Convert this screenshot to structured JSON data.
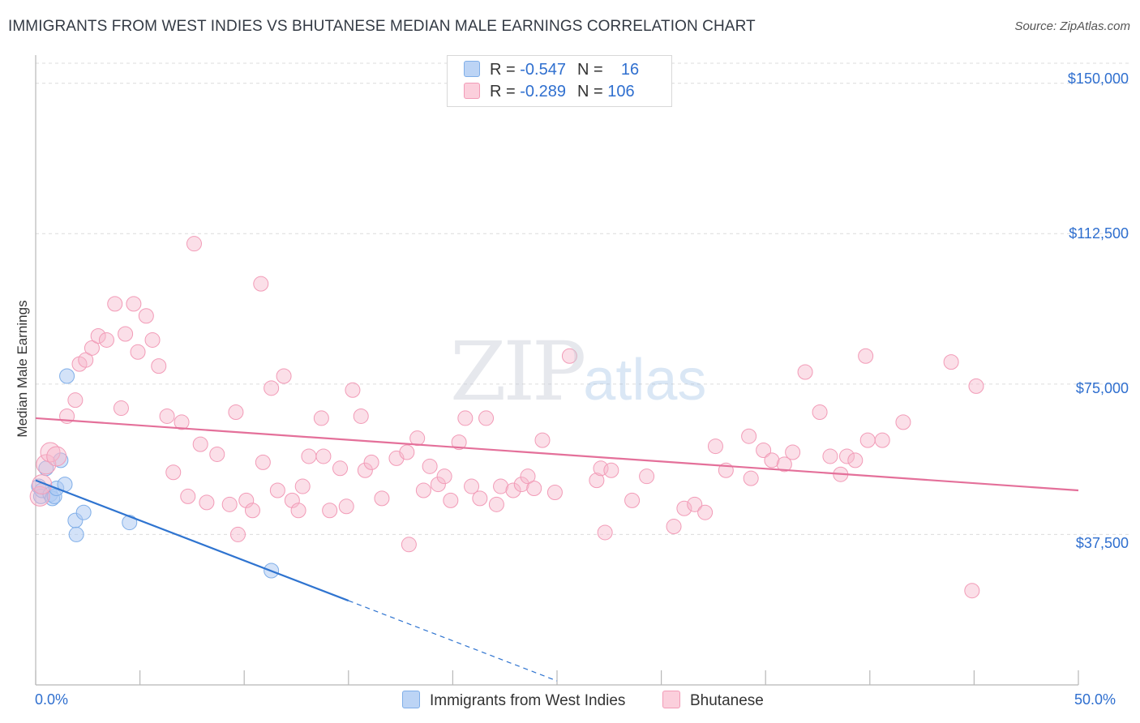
{
  "header": {
    "title": "IMMIGRANTS FROM WEST INDIES VS BHUTANESE MEDIAN MALE EARNINGS CORRELATION CHART",
    "source": "Source: ZipAtlas.com"
  },
  "watermark": {
    "zip": "ZIP",
    "atlas": "atlas"
  },
  "legend": {
    "rows": [
      {
        "r_label": "R =",
        "r_value": "-0.547",
        "n_label": "N =",
        "n_value": "16",
        "color": "#aecbf2"
      },
      {
        "r_label": "R =",
        "r_value": "-0.289",
        "n_label": "N =",
        "n_value": "106",
        "color": "#f7b9cb"
      }
    ]
  },
  "bottom_legend": {
    "items": [
      {
        "label": "Immigrants from West Indies",
        "color": "#aecbf2"
      },
      {
        "label": "Bhutanese",
        "color": "#f7b9cb"
      }
    ]
  },
  "chart_data": {
    "type": "scatter",
    "title": "IMMIGRANTS FROM WEST INDIES VS BHUTANESE MEDIAN MALE EARNINGS CORRELATION CHART",
    "xlabel": "",
    "ylabel": "Median Male Earnings",
    "xlim": [
      0,
      50
    ],
    "ylim": [
      0,
      155000
    ],
    "x_tick_labels": [
      "0.0%",
      "50.0%"
    ],
    "y_ticks": [
      37500,
      75000,
      112500,
      150000
    ],
    "y_tick_labels": [
      "$37,500",
      "$75,000",
      "$112,500",
      "$150,000"
    ],
    "grid": true,
    "series": [
      {
        "name": "Immigrants from West Indies",
        "color": "#7faee8",
        "line_color": "#2f74d0",
        "points": [
          [
            0.15,
            49500
          ],
          [
            0.25,
            47000
          ],
          [
            0.3,
            48500
          ],
          [
            0.5,
            54000
          ],
          [
            0.7,
            47500
          ],
          [
            0.8,
            46500
          ],
          [
            0.9,
            47000
          ],
          [
            1.0,
            49000
          ],
          [
            1.2,
            56000
          ],
          [
            1.4,
            50000
          ],
          [
            1.5,
            77000
          ],
          [
            1.9,
            41000
          ],
          [
            1.95,
            37500
          ],
          [
            2.3,
            43000
          ],
          [
            4.5,
            40500
          ],
          [
            11.3,
            28500
          ]
        ],
        "trend": {
          "x0": 0,
          "y0": 51000,
          "x1": 15,
          "y1": 21000,
          "dash_to_x": 25
        }
      },
      {
        "name": "Bhutanese",
        "color": "#f29bb7",
        "line_color": "#e4709a",
        "points": [
          [
            0.2,
            47000
          ],
          [
            0.3,
            50000
          ],
          [
            0.5,
            55000
          ],
          [
            0.7,
            58000
          ],
          [
            1.0,
            57000
          ],
          [
            1.5,
            67000
          ],
          [
            1.9,
            71000
          ],
          [
            2.1,
            80000
          ],
          [
            2.4,
            81000
          ],
          [
            2.7,
            84000
          ],
          [
            3.0,
            87000
          ],
          [
            3.4,
            86000
          ],
          [
            3.8,
            95000
          ],
          [
            4.1,
            69000
          ],
          [
            4.3,
            87500
          ],
          [
            4.7,
            95000
          ],
          [
            4.9,
            83000
          ],
          [
            5.3,
            92000
          ],
          [
            5.6,
            86000
          ],
          [
            5.9,
            79500
          ],
          [
            6.3,
            67000
          ],
          [
            6.6,
            53000
          ],
          [
            7.0,
            65500
          ],
          [
            7.3,
            47000
          ],
          [
            7.6,
            110000
          ],
          [
            7.9,
            60000
          ],
          [
            8.2,
            45500
          ],
          [
            8.7,
            57500
          ],
          [
            9.3,
            45000
          ],
          [
            9.6,
            68000
          ],
          [
            9.7,
            37500
          ],
          [
            10.1,
            46000
          ],
          [
            10.4,
            43500
          ],
          [
            10.8,
            100000
          ],
          [
            10.9,
            55500
          ],
          [
            11.3,
            74000
          ],
          [
            11.6,
            48500
          ],
          [
            11.9,
            77000
          ],
          [
            12.3,
            46000
          ],
          [
            12.6,
            43500
          ],
          [
            12.8,
            49500
          ],
          [
            13.1,
            57000
          ],
          [
            13.7,
            66500
          ],
          [
            13.8,
            57000
          ],
          [
            14.1,
            43500
          ],
          [
            14.6,
            54000
          ],
          [
            14.9,
            44500
          ],
          [
            15.2,
            73500
          ],
          [
            15.6,
            67000
          ],
          [
            15.8,
            53500
          ],
          [
            16.1,
            55500
          ],
          [
            16.6,
            46500
          ],
          [
            17.3,
            56500
          ],
          [
            17.8,
            58000
          ],
          [
            17.9,
            35000
          ],
          [
            18.3,
            61500
          ],
          [
            18.6,
            48500
          ],
          [
            18.9,
            54500
          ],
          [
            19.3,
            50000
          ],
          [
            19.6,
            52000
          ],
          [
            19.9,
            46000
          ],
          [
            20.3,
            60500
          ],
          [
            20.6,
            66500
          ],
          [
            20.9,
            49500
          ],
          [
            21.3,
            46500
          ],
          [
            21.6,
            66500
          ],
          [
            22.1,
            45000
          ],
          [
            22.3,
            49500
          ],
          [
            22.9,
            48500
          ],
          [
            23.3,
            50000
          ],
          [
            23.6,
            52000
          ],
          [
            23.9,
            49000
          ],
          [
            24.3,
            61000
          ],
          [
            24.9,
            48000
          ],
          [
            25.6,
            82000
          ],
          [
            26.9,
            51000
          ],
          [
            27.1,
            54000
          ],
          [
            27.3,
            38000
          ],
          [
            27.6,
            53500
          ],
          [
            28.6,
            46000
          ],
          [
            29.3,
            52000
          ],
          [
            30.6,
            39500
          ],
          [
            31.1,
            44000
          ],
          [
            31.6,
            45000
          ],
          [
            32.1,
            43000
          ],
          [
            32.6,
            59500
          ],
          [
            33.1,
            53500
          ],
          [
            34.2,
            62000
          ],
          [
            34.3,
            51500
          ],
          [
            34.9,
            58500
          ],
          [
            35.3,
            56000
          ],
          [
            35.9,
            55000
          ],
          [
            36.3,
            58000
          ],
          [
            36.9,
            78000
          ],
          [
            37.6,
            68000
          ],
          [
            38.1,
            57000
          ],
          [
            38.6,
            52500
          ],
          [
            38.9,
            57000
          ],
          [
            39.3,
            56000
          ],
          [
            39.8,
            82000
          ],
          [
            39.9,
            61000
          ],
          [
            40.6,
            61000
          ],
          [
            41.6,
            65500
          ],
          [
            43.9,
            80500
          ],
          [
            44.9,
            23500
          ],
          [
            45.1,
            74500
          ]
        ],
        "trend": {
          "x0": 0,
          "y0": 66500,
          "x1": 50,
          "y1": 48500
        }
      }
    ]
  }
}
